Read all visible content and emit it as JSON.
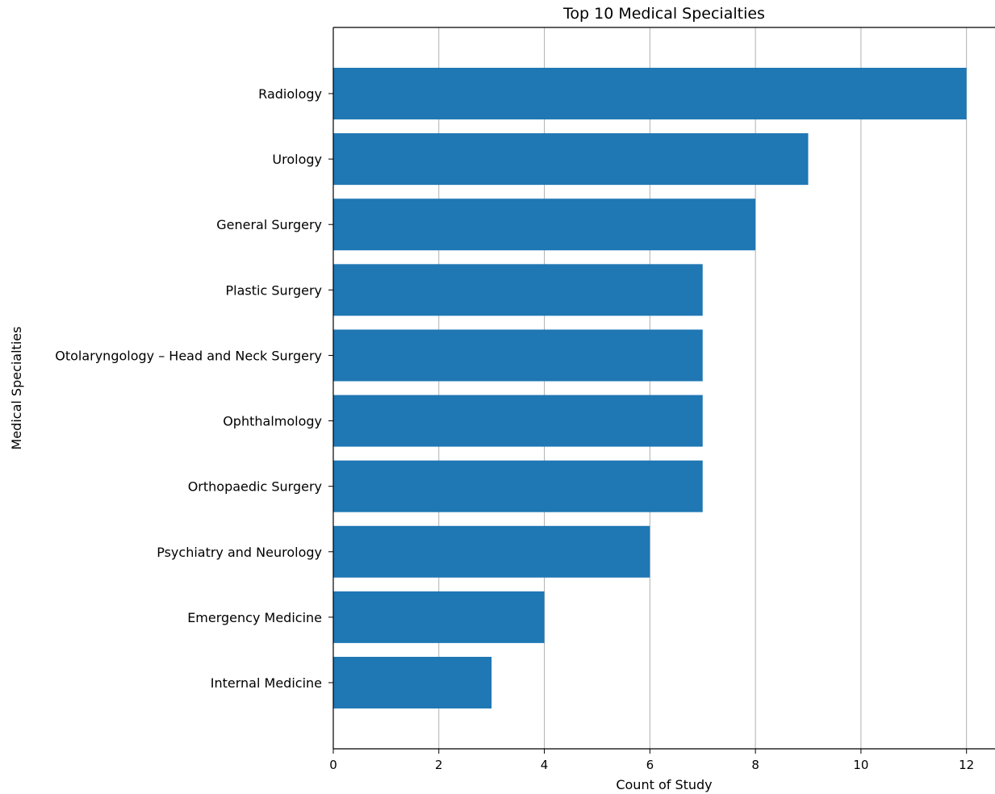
{
  "chart_data": {
    "type": "bar",
    "orientation": "horizontal",
    "title": "Top 10 Medical Specialties",
    "xlabel": "Count of Study",
    "ylabel": "Medical Specialties",
    "categories": [
      "Radiology",
      "Urology",
      "General Surgery",
      "Plastic Surgery",
      "Otolaryngology – Head and Neck Surgery",
      "Ophthalmology",
      "Orthopaedic Surgery",
      "Psychiatry and Neurology",
      "Emergency Medicine",
      "Internal Medicine"
    ],
    "values": [
      12,
      9,
      8,
      7,
      7,
      7,
      7,
      6,
      4,
      3
    ],
    "xlim": [
      0,
      12.54
    ],
    "xticks": [
      0,
      2,
      4,
      6,
      8,
      10,
      12
    ],
    "grid": "vertical",
    "bar_color": "#1f77b4",
    "grid_color": "#b0b0b0"
  }
}
